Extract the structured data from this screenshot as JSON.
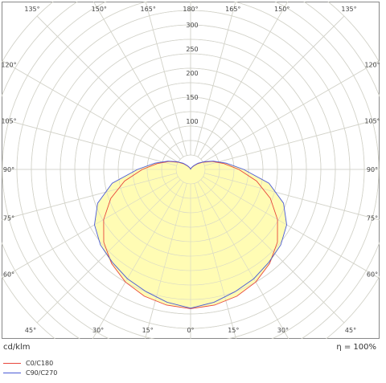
{
  "chart_data": {
    "type": "polar",
    "unit_label": "cd/klm",
    "efficiency_label": "η = 100%",
    "radial_ticks": [
      "100",
      "150",
      "200",
      "250",
      "300"
    ],
    "angle_labels": [
      {
        "side": "left",
        "angle": 135,
        "text": "135°"
      },
      {
        "side": "left",
        "angle": 150,
        "text": "150°"
      },
      {
        "side": "left",
        "angle": 165,
        "text": "165°"
      },
      {
        "side": "center",
        "angle": 180,
        "text": "180°"
      },
      {
        "side": "right",
        "angle": 165,
        "text": "165°"
      },
      {
        "side": "right",
        "angle": 150,
        "text": "150°"
      },
      {
        "side": "right",
        "angle": 135,
        "text": "135°"
      },
      {
        "side": "left",
        "angle": 120,
        "text": "120°"
      },
      {
        "side": "right",
        "angle": 120,
        "text": "120°"
      },
      {
        "side": "left",
        "angle": 105,
        "text": "105°"
      },
      {
        "side": "right",
        "angle": 105,
        "text": "105°"
      },
      {
        "side": "left",
        "angle": 90,
        "text": "90°"
      },
      {
        "side": "right",
        "angle": 90,
        "text": "90°"
      },
      {
        "side": "left",
        "angle": 75,
        "text": "75°"
      },
      {
        "side": "right",
        "angle": 75,
        "text": "75°"
      },
      {
        "side": "left",
        "angle": 60,
        "text": "60°"
      },
      {
        "side": "right",
        "angle": 60,
        "text": "60°"
      },
      {
        "side": "left",
        "angle": 45,
        "text": "45°"
      },
      {
        "side": "left",
        "angle": 30,
        "text": "30°"
      },
      {
        "side": "left",
        "angle": 15,
        "text": "15°"
      },
      {
        "side": "center",
        "angle": 0,
        "text": "0°"
      },
      {
        "side": "right",
        "angle": 15,
        "text": "15°"
      },
      {
        "side": "right",
        "angle": 30,
        "text": "30°"
      },
      {
        "side": "right",
        "angle": 45,
        "text": "45°"
      }
    ],
    "angles": [
      0,
      10,
      20,
      30,
      40,
      50,
      60,
      70,
      80,
      90,
      100,
      110,
      120,
      130,
      140,
      150,
      160,
      170,
      180
    ],
    "series": [
      {
        "name": "C0/C180",
        "color": "#e8473c",
        "values": [
          289,
          286,
          280,
          270,
          255,
          235,
          208,
          176,
          139,
          100,
          70,
          48,
          30,
          18,
          9,
          4,
          2,
          1,
          0
        ]
      },
      {
        "name": "C90/C270",
        "color": "#4a5bd6",
        "values": [
          288,
          280,
          270,
          262,
          252,
          244,
          230,
          205,
          165,
          110,
          75,
          50,
          32,
          20,
          10,
          5,
          2,
          1,
          0
        ]
      }
    ],
    "fill_color": "#fffcb0"
  }
}
